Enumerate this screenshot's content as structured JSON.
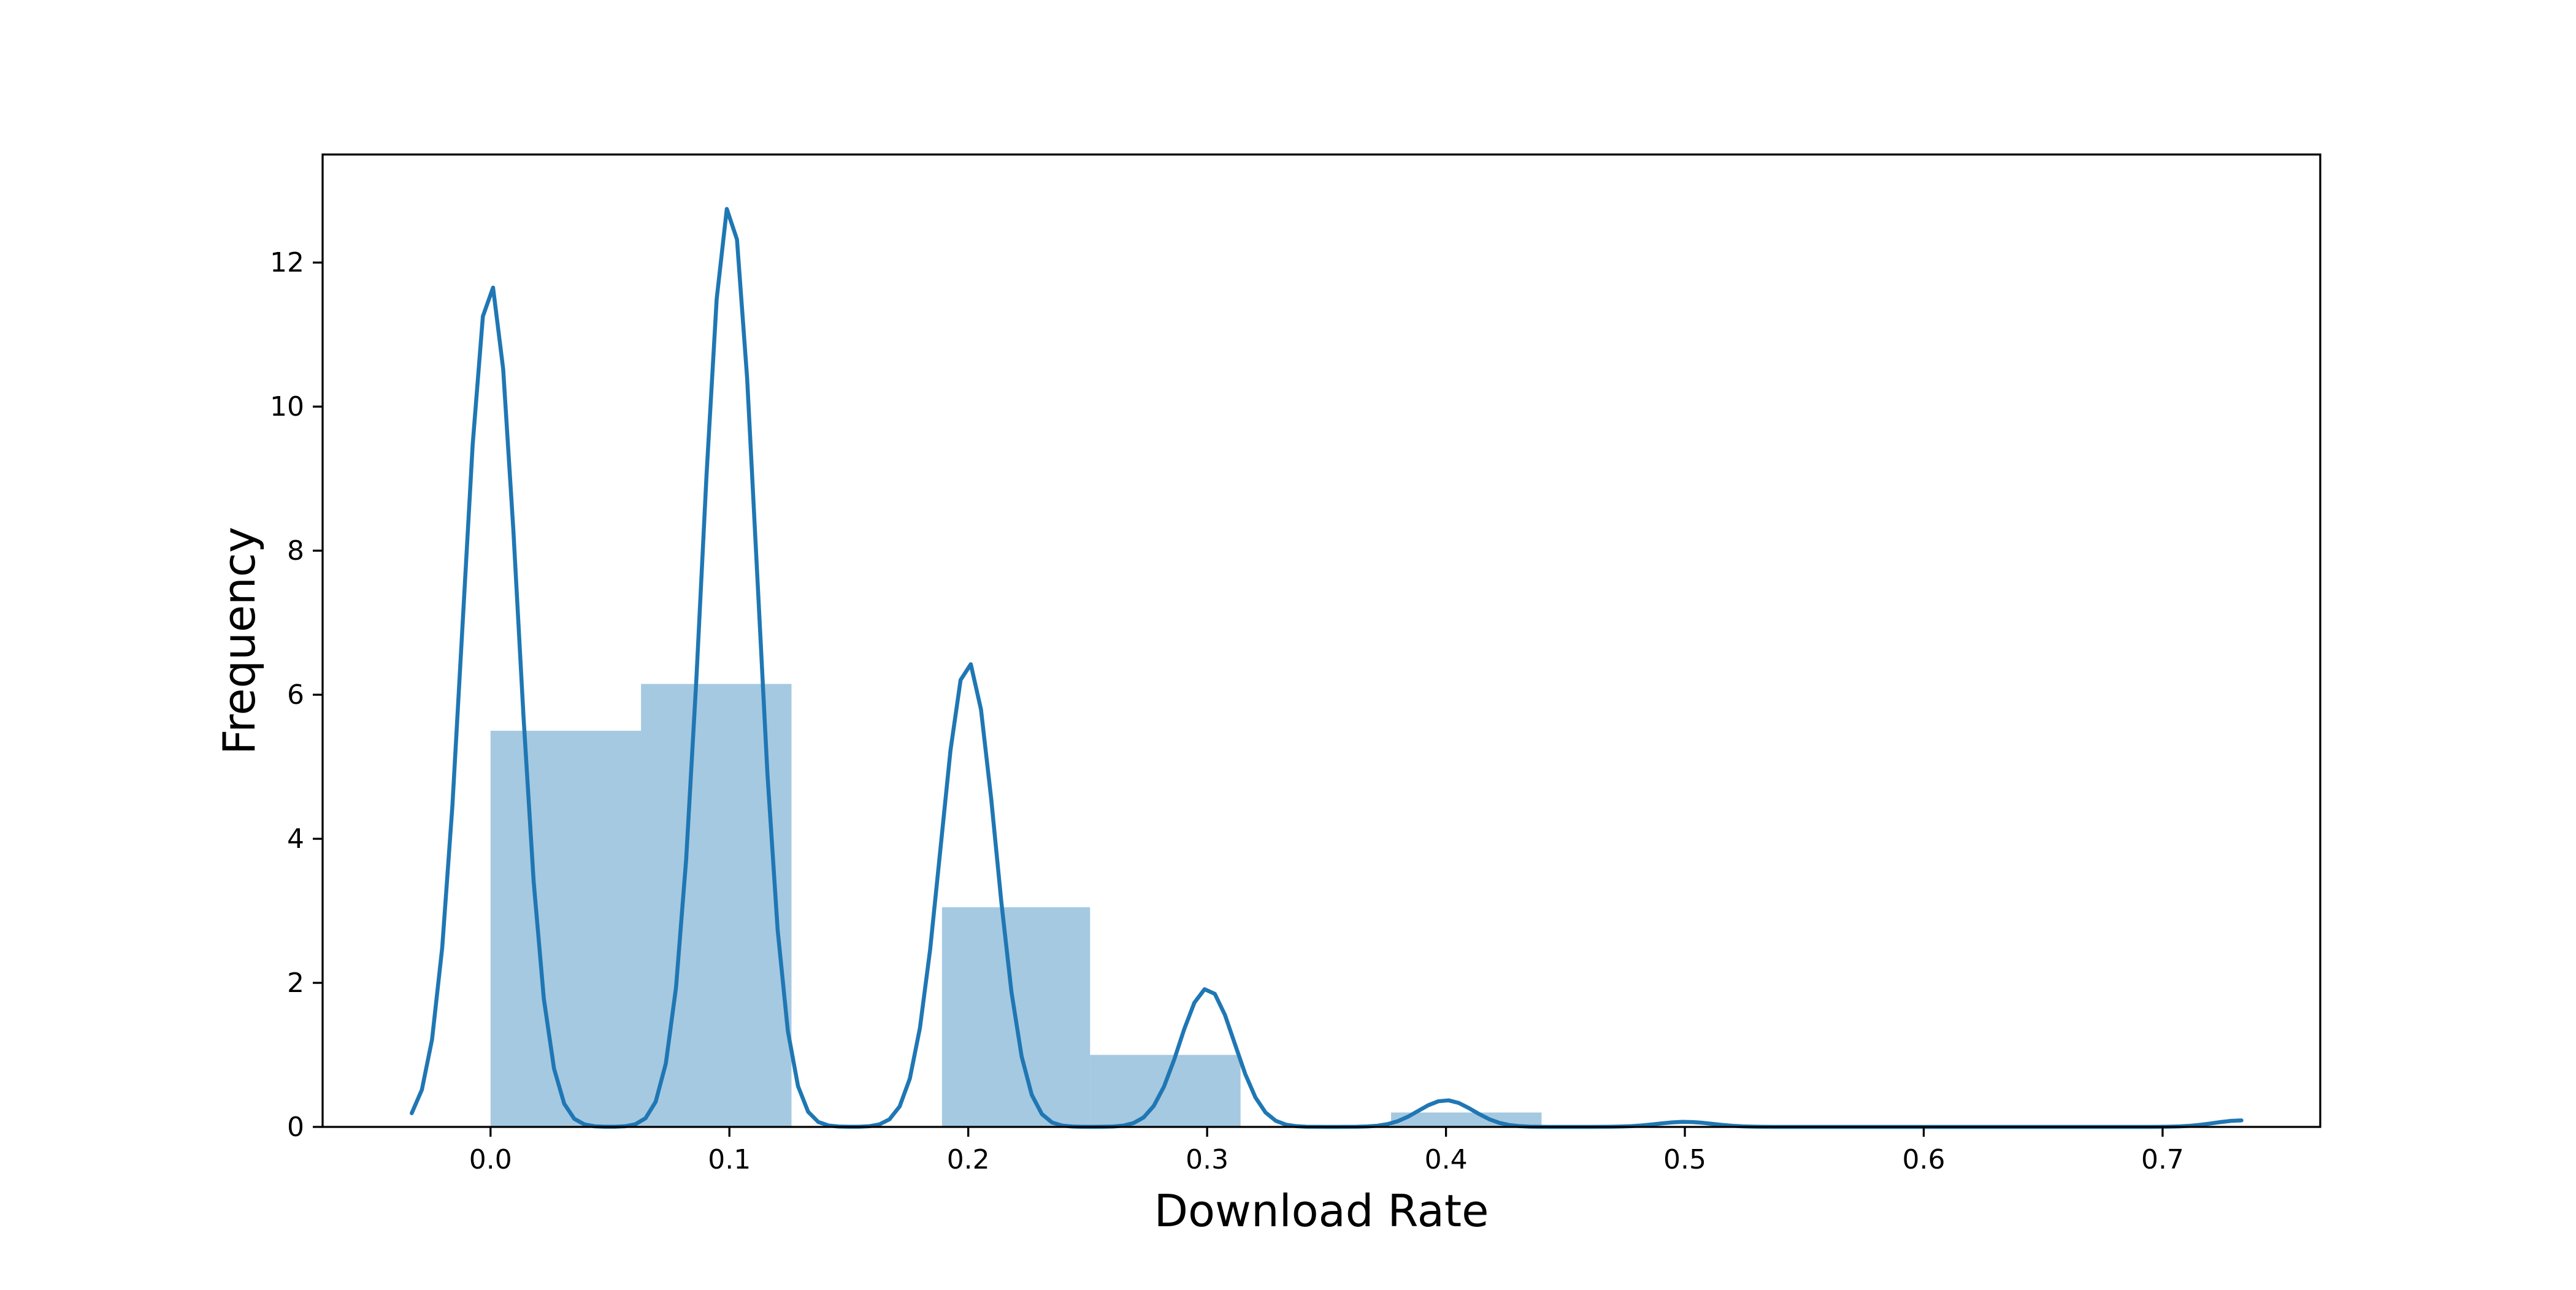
{
  "chart_data": {
    "type": "histogram+kde",
    "title": "",
    "xlabel": "Download Rate",
    "ylabel": "Frequency",
    "xlim": [
      -0.0703,
      0.766
    ],
    "ylim": [
      0,
      13.5
    ],
    "grid": false,
    "legend": "none",
    "x_ticks": [
      0.0,
      0.1,
      0.2,
      0.3,
      0.4,
      0.5,
      0.6,
      0.7
    ],
    "x_tick_labels": [
      "0.0",
      "0.1",
      "0.2",
      "0.3",
      "0.4",
      "0.5",
      "0.6",
      "0.7"
    ],
    "y_ticks": [
      0,
      2,
      4,
      6,
      8,
      10,
      12
    ],
    "y_tick_labels": [
      "0",
      "2",
      "4",
      "6",
      "8",
      "10",
      "12"
    ],
    "bars": [
      {
        "x0": 0.0,
        "x1": 0.063,
        "height": 5.5
      },
      {
        "x0": 0.063,
        "x1": 0.126,
        "height": 6.15
      },
      {
        "x0": 0.189,
        "x1": 0.251,
        "height": 3.05
      },
      {
        "x0": 0.251,
        "x1": 0.314,
        "height": 1.0
      },
      {
        "x0": 0.377,
        "x1": 0.44,
        "height": 0.2
      }
    ],
    "kde": {
      "x_start": -0.033,
      "x_end": 0.733,
      "sigma": 0.0115,
      "peaks": [
        {
          "mu": 0.0,
          "amplitude": 11.7
        },
        {
          "mu": 0.1,
          "amplitude": 12.8
        },
        {
          "mu": 0.2,
          "amplitude": 6.45
        },
        {
          "mu": 0.3,
          "amplitude": 1.92
        },
        {
          "mu": 0.4,
          "amplitude": 0.37
        },
        {
          "mu": 0.5,
          "amplitude": 0.07
        },
        {
          "mu": 0.733,
          "amplitude": 0.09
        }
      ]
    },
    "colors": {
      "kde_line": "#1f77b4",
      "bar_fill": "rgba(31,119,180,0.4)",
      "axis": "#000000",
      "background": "#ffffff"
    }
  }
}
